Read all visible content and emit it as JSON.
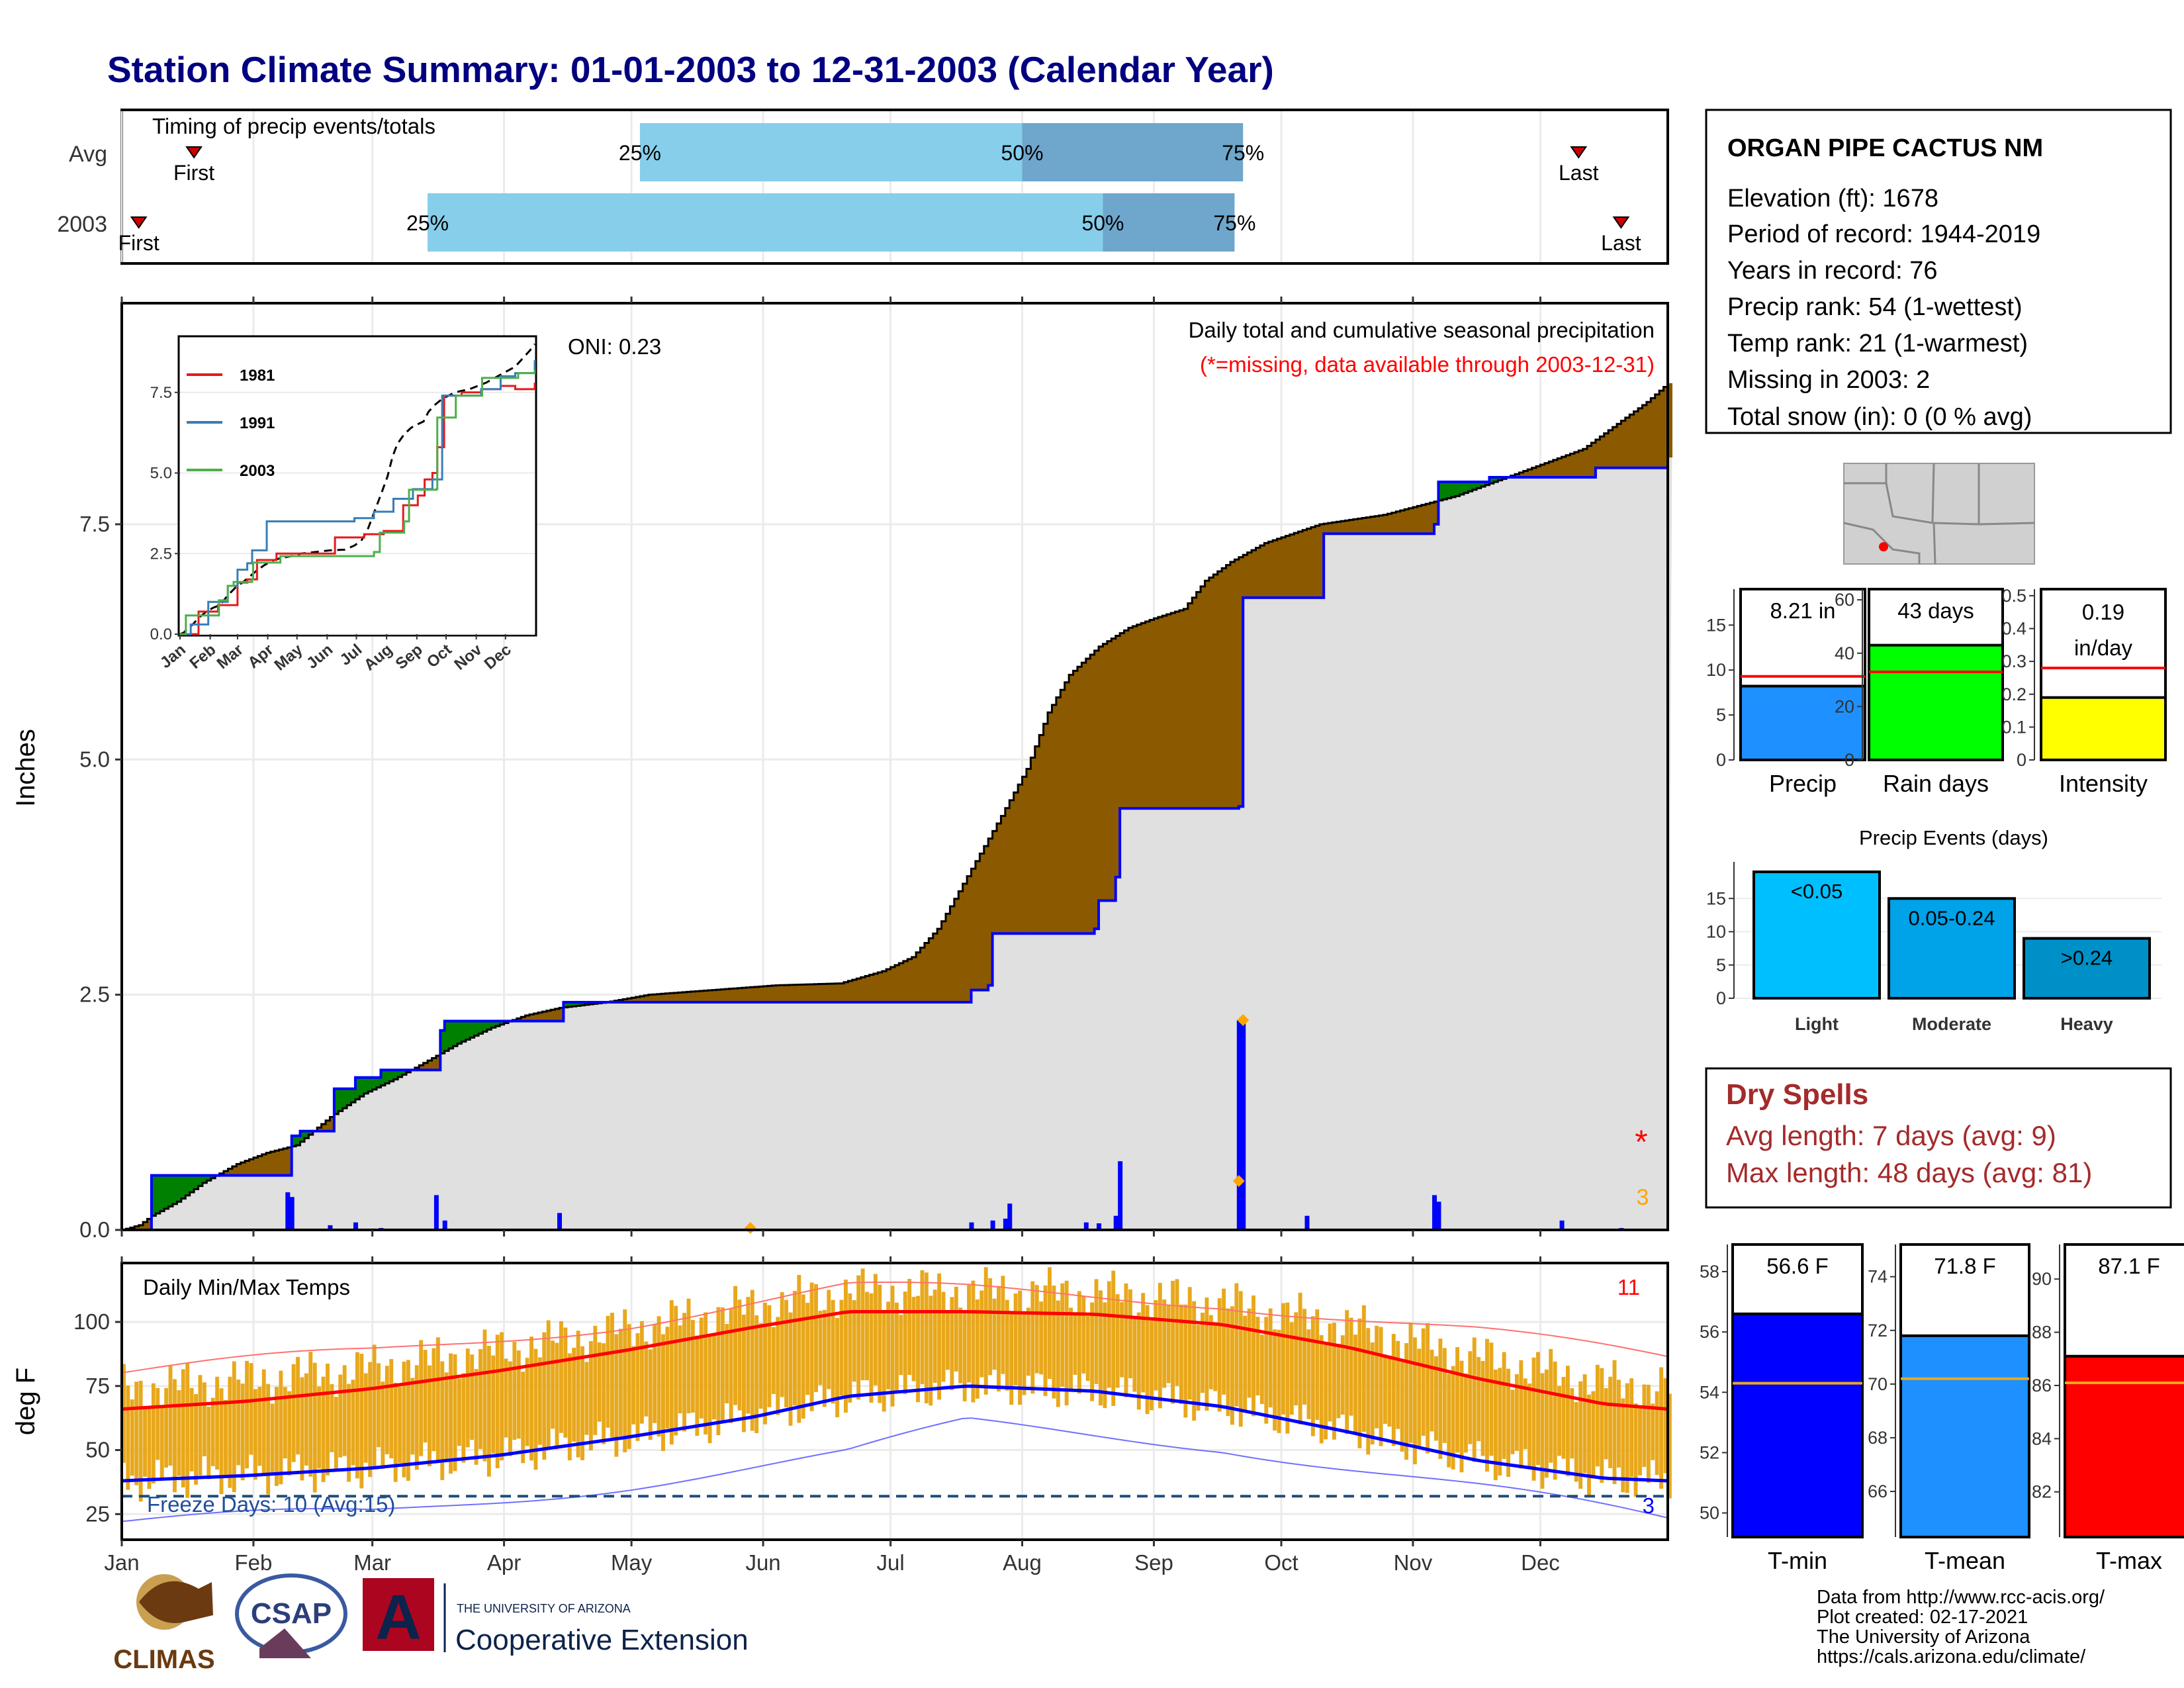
{
  "page_title": "Station Climate Summary: 01-01-2003 to 12-31-2003 (Calendar Year)",
  "colors": {
    "title": "#000080",
    "brown": "#8b5a00",
    "green": "#008000",
    "blue": "#0000ff",
    "gray_fill": "#e0e0e0",
    "orange": "#e8a81c",
    "red": "#ff0000",
    "light_blue": "#87ceeb",
    "mid_blue": "#6fa6cc",
    "dry_red": "#a52a2a"
  },
  "station": {
    "name": "ORGAN PIPE CACTUS NM",
    "lines": [
      "Elevation (ft): 1678",
      "Period of record: 1944-2019",
      "Years in record: 76",
      "Precip rank: 54 (1-wettest)",
      "Temp rank: 21 (1-warmest)",
      "Missing in 2003: 2",
      "Total snow (in): 0 (0 % avg)"
    ]
  },
  "months": [
    "Jan",
    "Feb",
    "Mar",
    "Apr",
    "May",
    "Jun",
    "Jul",
    "Aug",
    "Sep",
    "Oct",
    "Nov",
    "Dec"
  ],
  "chart_data": [
    {
      "type": "bar",
      "name": "timing",
      "title": "Timing of precip events/totals",
      "rows": [
        "Avg",
        "2003"
      ],
      "unit": "day of year",
      "avg": {
        "first": 18,
        "p25": 123,
        "p50": 213,
        "p75": 265,
        "last": 344
      },
      "year": {
        "first": 5,
        "p25": 73,
        "p50": 232,
        "p75": 263,
        "last": 354
      },
      "quartile_labels": [
        "25%",
        "50%",
        "75%"
      ],
      "first_label": "First",
      "last_label": "Last"
    },
    {
      "type": "area",
      "name": "precipitation",
      "title": "Daily total and cumulative seasonal precipitation",
      "subtitle": "(*=missing, data available through 2003-12-31)",
      "oni": "ONI: 0.23",
      "ylabel": "Inches",
      "ylim": [
        0,
        9.85
      ],
      "yticks": [
        0.0,
        2.5,
        5.0,
        7.5
      ],
      "ytick_labels": [
        "0.0",
        "2.5",
        "5.0",
        "7.5"
      ],
      "x_unit": "day of year",
      "avg_cumulative": [
        [
          1,
          0
        ],
        [
          5,
          0.05
        ],
        [
          8,
          0.15
        ],
        [
          14,
          0.3
        ],
        [
          20,
          0.5
        ],
        [
          28,
          0.7
        ],
        [
          35,
          0.82
        ],
        [
          42,
          0.9
        ],
        [
          50,
          1.2
        ],
        [
          58,
          1.45
        ],
        [
          65,
          1.6
        ],
        [
          73,
          1.8
        ],
        [
          80,
          1.98
        ],
        [
          88,
          2.15
        ],
        [
          96,
          2.28
        ],
        [
          104,
          2.36
        ],
        [
          115,
          2.42
        ],
        [
          125,
          2.5
        ],
        [
          140,
          2.55
        ],
        [
          155,
          2.6
        ],
        [
          170,
          2.62
        ],
        [
          180,
          2.75
        ],
        [
          187,
          2.9
        ],
        [
          193,
          3.2
        ],
        [
          198,
          3.6
        ],
        [
          203,
          4.0
        ],
        [
          208,
          4.4
        ],
        [
          214,
          4.9
        ],
        [
          219,
          5.5
        ],
        [
          224,
          5.9
        ],
        [
          231,
          6.2
        ],
        [
          238,
          6.4
        ],
        [
          244,
          6.5
        ],
        [
          251,
          6.6
        ],
        [
          256,
          6.9
        ],
        [
          262,
          7.1
        ],
        [
          270,
          7.3
        ],
        [
          283,
          7.5
        ],
        [
          298,
          7.6
        ],
        [
          315,
          7.8
        ],
        [
          330,
          8.05
        ],
        [
          345,
          8.3
        ],
        [
          360,
          8.8
        ],
        [
          365,
          9.0
        ]
      ],
      "cumulative_2003": [
        [
          1,
          0
        ],
        [
          7,
          0
        ],
        [
          8,
          0.58
        ],
        [
          19,
          0.58
        ],
        [
          20,
          0.58
        ],
        [
          40,
          0.58
        ],
        [
          41,
          1.0
        ],
        [
          42,
          1.0
        ],
        [
          43,
          1.05
        ],
        [
          50,
          1.05
        ],
        [
          51,
          1.5
        ],
        [
          55,
          1.5
        ],
        [
          56,
          1.62
        ],
        [
          62,
          1.7
        ],
        [
          75,
          1.7
        ],
        [
          76,
          2.12
        ],
        [
          77,
          2.22
        ],
        [
          104,
          2.22
        ],
        [
          105,
          2.42
        ],
        [
          200,
          2.42
        ],
        [
          201,
          2.55
        ],
        [
          205,
          2.6
        ],
        [
          206,
          3.15
        ],
        [
          230,
          3.2
        ],
        [
          231,
          3.5
        ],
        [
          235,
          3.75
        ],
        [
          236,
          4.48
        ],
        [
          264,
          4.5
        ],
        [
          265,
          6.72
        ],
        [
          284,
          7.4
        ],
        [
          310,
          7.5
        ],
        [
          311,
          7.95
        ],
        [
          323,
          8.0
        ],
        [
          331,
          8.0
        ],
        [
          348,
          8.1
        ],
        [
          365,
          8.21
        ]
      ],
      "daily_bars": [
        [
          40,
          0.4
        ],
        [
          41,
          0.35
        ],
        [
          50,
          0.05
        ],
        [
          56,
          0.08
        ],
        [
          62,
          0.02
        ],
        [
          75,
          0.37
        ],
        [
          77,
          0.1
        ],
        [
          104,
          0.18
        ],
        [
          201,
          0.08
        ],
        [
          206,
          0.1
        ],
        [
          209,
          0.12
        ],
        [
          210,
          0.28
        ],
        [
          228,
          0.08
        ],
        [
          231,
          0.07
        ],
        [
          235,
          0.15
        ],
        [
          236,
          0.73
        ],
        [
          264,
          2.23
        ],
        [
          265,
          2.2
        ],
        [
          280,
          0.15
        ],
        [
          310,
          0.37
        ],
        [
          311,
          0.3
        ],
        [
          340,
          0.1
        ],
        [
          354,
          0.02
        ]
      ],
      "orange_markers": [
        [
          149,
          0.02
        ],
        [
          265,
          2.23
        ],
        [
          264,
          0.52
        ]
      ],
      "missing_marker": "*",
      "missing_count": "3",
      "inset": {
        "type": "line",
        "ylim": [
          0,
          9.2
        ],
        "yticks": [
          0.0,
          2.5,
          5.0,
          7.5
        ],
        "ytick_labels": [
          "0.0",
          "2.5",
          "5.0",
          "7.5"
        ],
        "series": [
          {
            "name": "1981",
            "color": "#e41a1c",
            "values": [
              [
                1,
                0
              ],
              [
                20,
                0.7
              ],
              [
                40,
                0.9
              ],
              [
                60,
                1.6
              ],
              [
                70,
                1.7
              ],
              [
                80,
                2.3
              ],
              [
                100,
                2.5
              ],
              [
                130,
                2.5
              ],
              [
                160,
                3.0
              ],
              [
                190,
                3.1
              ],
              [
                210,
                3.2
              ],
              [
                230,
                4.0
              ],
              [
                245,
                4.3
              ],
              [
                252,
                4.8
              ],
              [
                260,
                5.0
              ],
              [
                265,
                5.8
              ],
              [
                272,
                7.4
              ],
              [
                290,
                7.5
              ],
              [
                310,
                7.6
              ],
              [
                330,
                7.7
              ],
              [
                345,
                7.6
              ],
              [
                365,
                7.8
              ]
            ]
          },
          {
            "name": "1991",
            "color": "#377eb8",
            "values": [
              [
                1,
                0
              ],
              [
                12,
                0.3
              ],
              [
                30,
                1.0
              ],
              [
                50,
                1.5
              ],
              [
                60,
                2.0
              ],
              [
                70,
                2.2
              ],
              [
                75,
                2.6
              ],
              [
                90,
                3.5
              ],
              [
                150,
                3.5
              ],
              [
                180,
                3.6
              ],
              [
                200,
                3.8
              ],
              [
                220,
                4.2
              ],
              [
                240,
                4.5
              ],
              [
                260,
                4.8
              ],
              [
                270,
                7.4
              ],
              [
                310,
                7.6
              ],
              [
                330,
                8.0
              ],
              [
                345,
                8.1
              ],
              [
                365,
                8.5
              ]
            ]
          },
          {
            "name": "2003",
            "color": "#4daf4a",
            "values": [
              [
                1,
                0
              ],
              [
                7,
                0.58
              ],
              [
                40,
                0.58
              ],
              [
                41,
                1.05
              ],
              [
                50,
                1.5
              ],
              [
                56,
                1.62
              ],
              [
                75,
                1.7
              ],
              [
                76,
                2.22
              ],
              [
                104,
                2.42
              ],
              [
                200,
                2.55
              ],
              [
                206,
                3.15
              ],
              [
                231,
                3.5
              ],
              [
                236,
                4.48
              ],
              [
                264,
                4.5
              ],
              [
                265,
                6.72
              ],
              [
                284,
                7.4
              ],
              [
                311,
                7.95
              ],
              [
                348,
                8.1
              ],
              [
                365,
                8.21
              ]
            ]
          }
        ]
      }
    },
    {
      "type": "bar",
      "name": "totals",
      "panels": [
        {
          "label": "Precip",
          "value_label": "8.21 in",
          "value": 8.21,
          "avg": 9.3,
          "ylim": [
            0,
            19
          ],
          "yticks": [
            0,
            5,
            10,
            15
          ],
          "color": "#1e90ff"
        },
        {
          "label": "Rain days",
          "value_label": "43 days",
          "value": 43,
          "avg": 33,
          "ylim": [
            0,
            64
          ],
          "yticks": [
            0,
            20,
            40,
            60
          ],
          "color": "#00ff00"
        },
        {
          "label": "Intensity",
          "value_label": "0.19\nin/day",
          "value": 0.19,
          "avg": 0.28,
          "ylim": [
            0,
            0.52
          ],
          "yticks": [
            0.0,
            0.1,
            0.2,
            0.3,
            0.4,
            0.5
          ],
          "color": "#ffff00"
        }
      ]
    },
    {
      "type": "bar",
      "name": "precip_events",
      "title": "Precip Events (days)",
      "categories": [
        "Light",
        "Moderate",
        "Heavy"
      ],
      "bar_labels": [
        "<0.05",
        "0.05-0.24",
        ">0.24"
      ],
      "values": [
        19,
        15,
        9
      ],
      "colors": [
        "#00bfff",
        "#00a2e8",
        "#0090c8"
      ],
      "ylim": [
        0,
        20.5
      ],
      "yticks": [
        0,
        5,
        10,
        15
      ]
    },
    {
      "type": "line",
      "name": "temperatures",
      "title": "Daily Min/Max Temps",
      "ylabel": "deg F",
      "ylim": [
        15,
        123
      ],
      "yticks": [
        25,
        50,
        75,
        100
      ],
      "hot_count": "11",
      "cold_count": "3",
      "freeze_text": "Freeze Days: 10 (Avg:15)",
      "freeze_line": 32,
      "avg_max": [
        [
          1,
          66
        ],
        [
          30,
          69
        ],
        [
          60,
          74
        ],
        [
          90,
          81
        ],
        [
          120,
          89
        ],
        [
          150,
          98
        ],
        [
          172,
          104
        ],
        [
          200,
          104
        ],
        [
          230,
          103
        ],
        [
          260,
          99
        ],
        [
          290,
          90
        ],
        [
          320,
          78
        ],
        [
          350,
          68
        ],
        [
          365,
          66
        ]
      ],
      "avg_min": [
        [
          1,
          38
        ],
        [
          30,
          40
        ],
        [
          60,
          43
        ],
        [
          90,
          48
        ],
        [
          120,
          55
        ],
        [
          150,
          63
        ],
        [
          172,
          71
        ],
        [
          200,
          75
        ],
        [
          230,
          73
        ],
        [
          260,
          67
        ],
        [
          290,
          57
        ],
        [
          320,
          46
        ],
        [
          350,
          39
        ],
        [
          365,
          38
        ]
      ],
      "record_max": [
        [
          1,
          80
        ],
        [
          60,
          88
        ],
        [
          120,
          100
        ],
        [
          172,
          113
        ],
        [
          200,
          112
        ],
        [
          260,
          108
        ],
        [
          320,
          96
        ],
        [
          365,
          85
        ]
      ],
      "record_min": [
        [
          1,
          22
        ],
        [
          60,
          25
        ],
        [
          120,
          37
        ],
        [
          172,
          48
        ],
        [
          200,
          60
        ],
        [
          260,
          52
        ],
        [
          320,
          35
        ],
        [
          365,
          22
        ]
      ],
      "range_seeds": {
        "min_offset": -14,
        "max_offset": 8
      }
    },
    {
      "type": "bar",
      "name": "temperature_totals",
      "panels": [
        {
          "label": "T-min",
          "value_label": "56.6 F",
          "value": 56.6,
          "avg": 54.3,
          "ylim": [
            49.2,
            58.9
          ],
          "yticks": [
            50,
            52,
            54,
            56,
            58
          ],
          "color": "#0000ff"
        },
        {
          "label": "T-mean",
          "value_label": "71.8 F",
          "value": 71.8,
          "avg": 70.2,
          "ylim": [
            64.3,
            75.2
          ],
          "yticks": [
            66,
            68,
            70,
            72,
            74
          ],
          "color": "#1e90ff"
        },
        {
          "label": "T-max",
          "value_label": "87.1 F",
          "value": 87.1,
          "avg": 86.1,
          "ylim": [
            80.3,
            91.3
          ],
          "yticks": [
            82,
            84,
            86,
            88,
            90
          ],
          "color": "#ff0000"
        }
      ]
    }
  ],
  "dry_spells": {
    "title": "Dry Spells",
    "avg_length": "Avg length: 7 days (avg: 9)",
    "max_length": "Max length: 48 days (avg: 81)"
  },
  "footer": {
    "lines": [
      "Data from http://www.rcc-acis.org/",
      "Plot created: 02-17-2021",
      "The University of Arizona",
      "https://cals.arizona.edu/climate/"
    ],
    "logo_climas": "CLIMAS",
    "logo_csap": "CSAP",
    "logo_ua_small": "THE UNIVERSITY OF ARIZONA",
    "logo_ua_big": "Cooperative Extension",
    "logo_ua_letter": "A"
  }
}
